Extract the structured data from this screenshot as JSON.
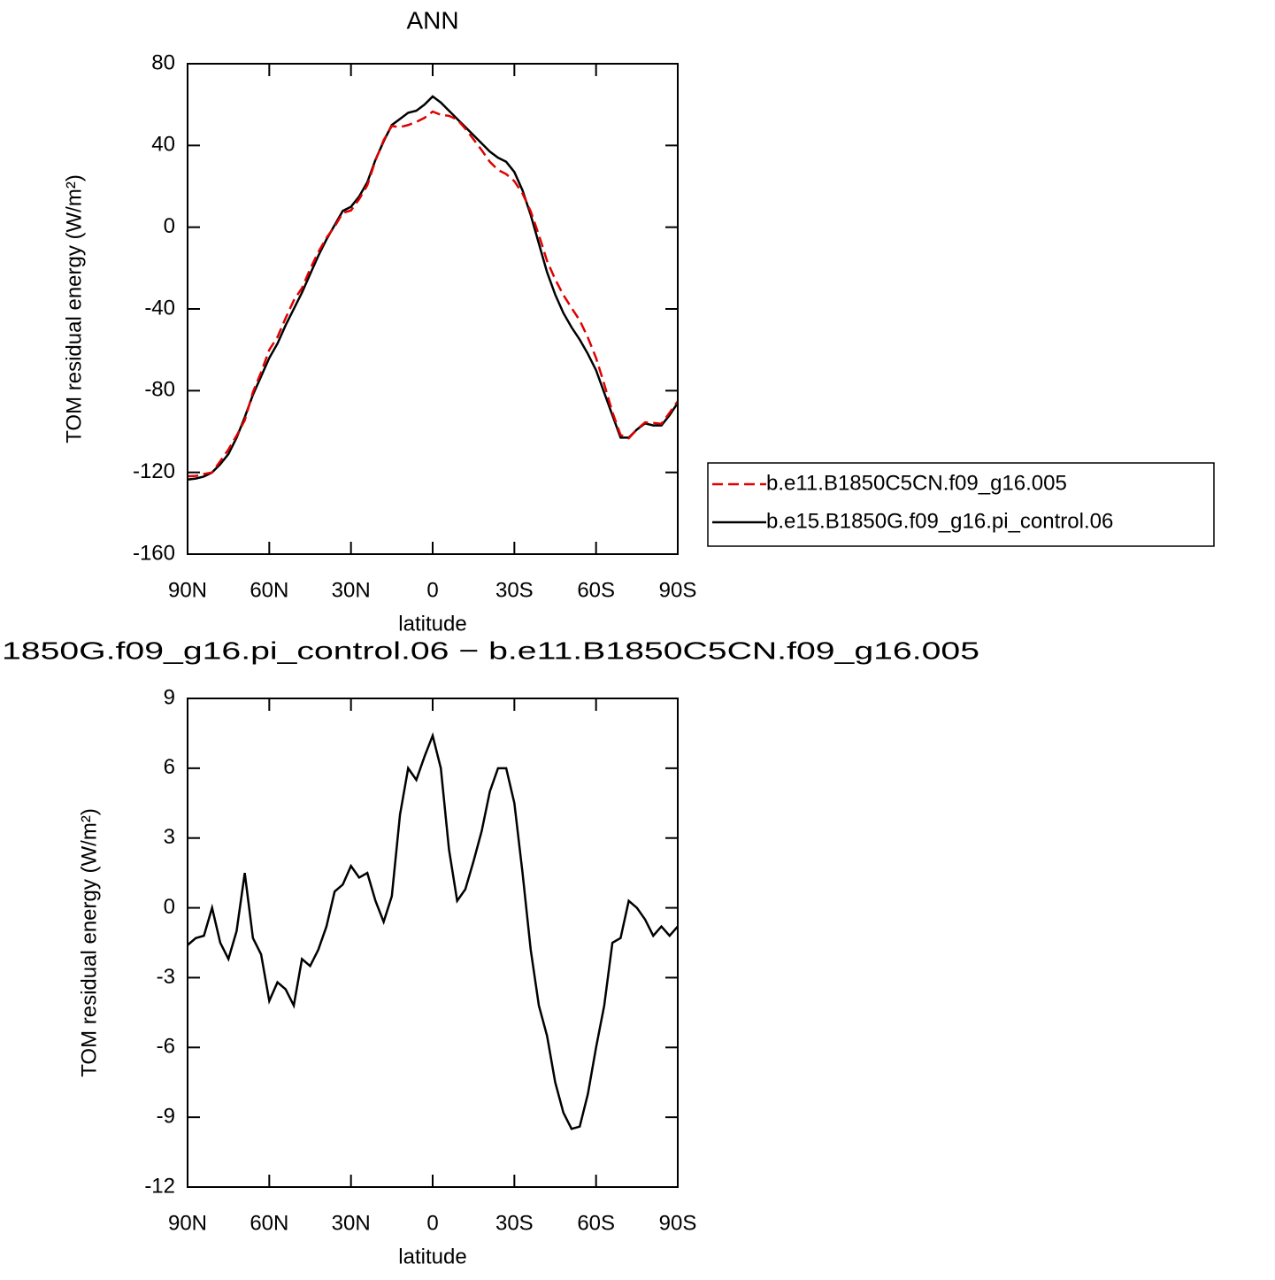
{
  "chart_data": [
    {
      "type": "line",
      "title": "ANN",
      "xlabel": "latitude",
      "ylabel": "TOM residual energy (W/m²)",
      "xlim": [
        90,
        -90
      ],
      "ylim": [
        -160,
        80
      ],
      "xticks": [
        {
          "value": 90,
          "label": "90N"
        },
        {
          "value": 60,
          "label": "60N"
        },
        {
          "value": 30,
          "label": "30N"
        },
        0,
        {
          "value": -30,
          "label": "30S"
        },
        {
          "value": -60,
          "label": "60S"
        },
        {
          "value": -90,
          "label": "90S"
        }
      ],
      "yticks": [
        -160,
        -120,
        -80,
        -40,
        0,
        40,
        80
      ],
      "legend": "right",
      "x": [
        90,
        87,
        84,
        81,
        78,
        75,
        72,
        69,
        66,
        63,
        60,
        57,
        54,
        51,
        48,
        45,
        42,
        39,
        36,
        33,
        30,
        27,
        24,
        21,
        18,
        15,
        12,
        9,
        6,
        3,
        0,
        -3,
        -6,
        -9,
        -12,
        -15,
        -18,
        -21,
        -24,
        -27,
        -30,
        -33,
        -36,
        -39,
        -42,
        -45,
        -48,
        -51,
        -54,
        -57,
        -60,
        -63,
        -66,
        -69,
        -72,
        -75,
        -78,
        -81,
        -84,
        -87,
        -90
      ],
      "series": [
        {
          "name": "b.e11.B1850C5CN.f09_g16.005",
          "color": "#e00000",
          "linestyle": "dashed",
          "values": [
            -121.9,
            -121.7,
            -120.8,
            -120,
            -114.5,
            -108.8,
            -102,
            -94.5,
            -80.7,
            -71,
            -60,
            -53.8,
            -44.5,
            -35.8,
            -29.8,
            -20.5,
            -12.2,
            -5.2,
            0.3,
            7,
            8.2,
            13.7,
            20.5,
            32.7,
            42.6,
            49.5,
            49,
            50,
            51.5,
            53.5,
            56.6,
            55,
            54.5,
            52.7,
            48.2,
            43,
            37.7,
            32,
            28,
            26,
            22.5,
            16.5,
            7.8,
            -3.8,
            -16.5,
            -25.5,
            -33.2,
            -39.5,
            -45.6,
            -54,
            -64,
            -76.8,
            -90.5,
            -101.7,
            -103.3,
            -99,
            -95.5,
            -95.8,
            -96.2,
            -90.8,
            -85.2
          ]
        },
        {
          "name": "b.e15.B1850G.f09_g16.pi_control.06",
          "color": "#000000",
          "linestyle": "solid",
          "values": [
            -123.5,
            -123,
            -122,
            -120,
            -116,
            -111,
            -103,
            -93,
            -82,
            -73,
            -64,
            -57,
            -48,
            -40,
            -32,
            -23,
            -14,
            -6,
            1,
            8,
            10,
            15,
            22,
            33,
            42,
            50,
            53,
            56,
            57,
            60,
            64,
            61,
            57,
            53,
            49,
            45,
            41,
            37,
            34,
            32,
            27,
            18,
            6,
            -8,
            -22,
            -33,
            -42,
            -49,
            -55,
            -62,
            -70,
            -81,
            -92,
            -103,
            -103,
            -99,
            -96,
            -97,
            -97,
            -92,
            -86
          ]
        }
      ]
    },
    {
      "type": "line",
      "title": "1850G.f09_g16.pi_control.06 − b.e11.B1850C5CN.f09_g16.005",
      "xlabel": "latitude",
      "ylabel": "TOM residual energy (W/m²)",
      "xlim": [
        90,
        -90
      ],
      "ylim": [
        -12,
        9
      ],
      "xticks": [
        {
          "value": 90,
          "label": "90N"
        },
        {
          "value": 60,
          "label": "60N"
        },
        {
          "value": 30,
          "label": "30N"
        },
        0,
        {
          "value": -30,
          "label": "30S"
        },
        {
          "value": -60,
          "label": "60S"
        },
        {
          "value": -90,
          "label": "90S"
        }
      ],
      "yticks": [
        -12,
        -9,
        -6,
        -3,
        0,
        3,
        6,
        9
      ],
      "x": [
        90,
        87,
        84,
        81,
        78,
        75,
        72,
        69,
        66,
        63,
        60,
        57,
        54,
        51,
        48,
        45,
        42,
        39,
        36,
        33,
        30,
        27,
        24,
        21,
        18,
        15,
        12,
        9,
        6,
        3,
        0,
        -3,
        -6,
        -9,
        -12,
        -15,
        -18,
        -21,
        -24,
        -27,
        -30,
        -33,
        -36,
        -39,
        -42,
        -45,
        -48,
        -51,
        -54,
        -57,
        -60,
        -63,
        -66,
        -69,
        -72,
        -75,
        -78,
        -81,
        -84,
        -87,
        -90
      ],
      "series": [
        {
          "color": "#000000",
          "linestyle": "solid",
          "values": [
            -1.6,
            -1.3,
            -1.2,
            0,
            -1.5,
            -2.2,
            -1,
            1.5,
            -1.3,
            -2,
            -4,
            -3.2,
            -3.5,
            -4.2,
            -2.2,
            -2.5,
            -1.8,
            -0.8,
            0.7,
            1,
            1.8,
            1.3,
            1.5,
            0.3,
            -0.6,
            0.5,
            4,
            6,
            5.5,
            6.5,
            7.4,
            6,
            2.5,
            0.3,
            0.8,
            2,
            3.3,
            5,
            6,
            6,
            4.5,
            1.5,
            -1.8,
            -4.2,
            -5.5,
            -7.5,
            -8.8,
            -9.5,
            -9.4,
            -8,
            -6,
            -4.2,
            -1.5,
            -1.3,
            0.3,
            0,
            -0.5,
            -1.2,
            -0.8,
            -1.2,
            -0.8
          ]
        }
      ]
    }
  ]
}
